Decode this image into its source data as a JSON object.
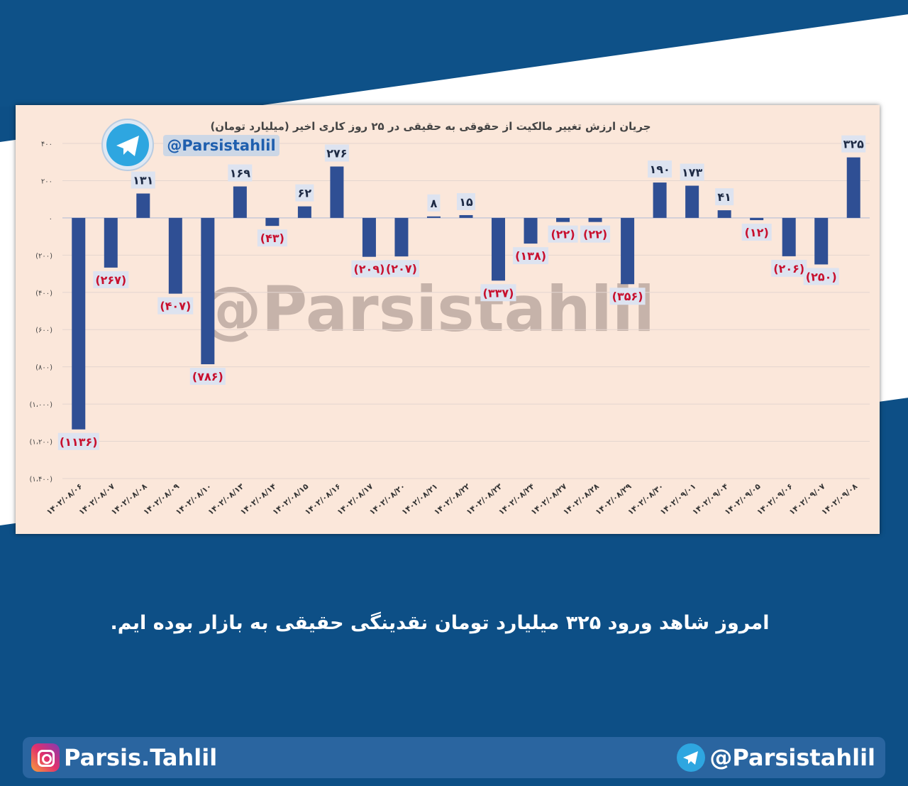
{
  "chart_data": {
    "type": "bar",
    "title": "جریان ارزش تغییر مالکیت از حقوقی به حقیقی در ۲۵ روز کاری اخیر (میلیارد تومان)",
    "categories": [
      "۱۴۰۲/۰۸/۰۶",
      "۱۴۰۲/۰۸/۰۷",
      "۱۴۰۲/۰۸/۰۸",
      "۱۴۰۲/۰۸/۰۹",
      "۱۴۰۲/۰۸/۱۰",
      "۱۴۰۲/۰۸/۱۳",
      "۱۴۰۲/۰۸/۱۴",
      "۱۴۰۲/۰۸/۱۵",
      "۱۴۰۲/۰۸/۱۶",
      "۱۴۰۲/۰۸/۱۷",
      "۱۴۰۲/۰۸/۲۰",
      "۱۴۰۲/۰۸/۲۱",
      "۱۴۰۲/۰۸/۲۲",
      "۱۴۰۲/۰۸/۲۳",
      "۱۴۰۲/۰۸/۲۴",
      "۱۴۰۲/۰۸/۲۷",
      "۱۴۰۲/۰۸/۲۸",
      "۱۴۰۲/۰۸/۲۹",
      "۱۴۰۲/۰۸/۳۰",
      "۱۴۰۲/۰۹/۰۱",
      "۱۴۰۲/۰۹/۰۴",
      "۱۴۰۲/۰۹/۰۵",
      "۱۴۰۲/۰۹/۰۶",
      "۱۴۰۲/۰۹/۰۷",
      "۱۴۰۲/۰۹/۰۸"
    ],
    "values": [
      -1136,
      -267,
      131,
      -407,
      -786,
      169,
      -43,
      62,
      276,
      -209,
      -207,
      8,
      15,
      -337,
      -138,
      -22,
      -22,
      -356,
      190,
      173,
      41,
      -12,
      -206,
      -250,
      325
    ],
    "data_labels": [
      "(۱۱۳۶)",
      "(۲۶۷)",
      "۱۳۱",
      "(۴۰۷)",
      "(۷۸۶)",
      "۱۶۹",
      "(۴۳)",
      "۶۲",
      "۲۷۶",
      "(۲۰۹)",
      "(۲۰۷)",
      "۸",
      "۱۵",
      "(۳۳۷)",
      "(۱۳۸)",
      "(۲۲)",
      "(۲۲)",
      "(۳۵۶)",
      "۱۹۰",
      "۱۷۳",
      "۴۱",
      "(۱۲)",
      "(۲۰۶)",
      "(۲۵۰)",
      "۳۲۵"
    ],
    "yticks": [
      400,
      200,
      0,
      -200,
      -400,
      -600,
      -800,
      -1000,
      -1200,
      -1400
    ],
    "ytick_labels": [
      "۴۰۰",
      "۲۰۰",
      "۰",
      "(۲۰۰)",
      "(۴۰۰)",
      "(۶۰۰)",
      "(۸۰۰)",
      "(۱،۰۰۰)",
      "(۱،۲۰۰)",
      "(۱،۴۰۰)"
    ],
    "ylim": [
      -1400,
      400
    ],
    "grid": true,
    "colors": {
      "bar": "#2f4f94",
      "positive_label": "#1e2a44",
      "negative_label": "#c8102e",
      "label_box": "#dde3f0"
    }
  },
  "watermark": "@Parsistahlil",
  "channel_badge": {
    "handle": "@Parsistahlil",
    "icon": "telegram-icon"
  },
  "caption": "امروز شاهد ورود ۳۲۵ میلیارد تومان نقدینگی حقیقی به بازار بوده ایم.",
  "footer": {
    "instagram_handle": "Parsis.Tahlil",
    "instagram_icon": "instagram-icon",
    "telegram_handle": "@Parsistahlil",
    "telegram_icon": "telegram-icon"
  }
}
